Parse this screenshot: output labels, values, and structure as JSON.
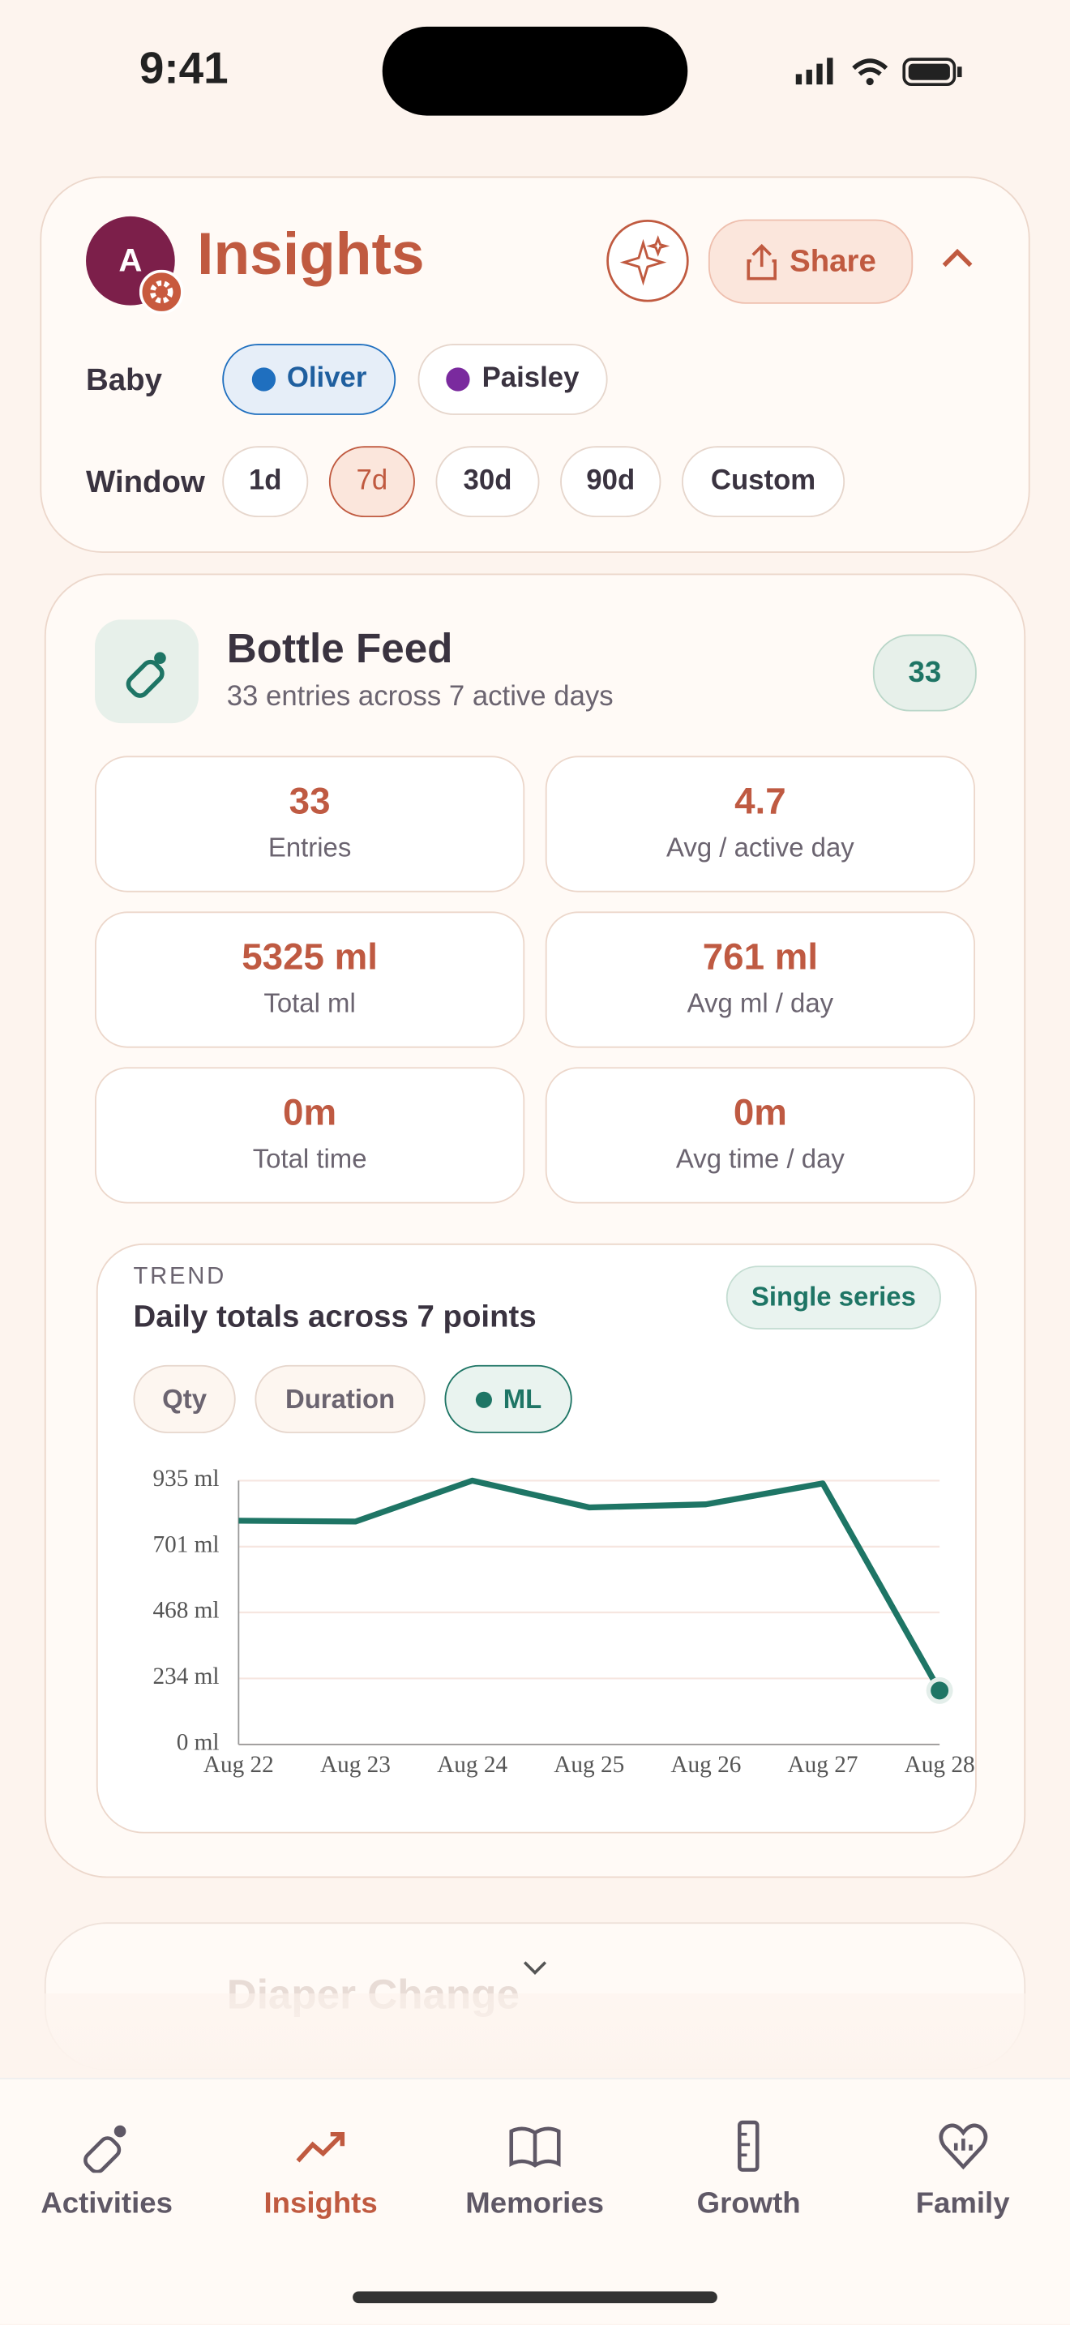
{
  "status_bar": {
    "time": "9:41"
  },
  "header": {
    "avatar": "A",
    "title": "Insights",
    "share": "Share",
    "baby_label": "Baby",
    "babies": [
      {
        "name": "Oliver",
        "color": "#1f6fbf"
      },
      {
        "name": "Paisley",
        "color": "#7a2a9e"
      }
    ],
    "window_label": "Window",
    "windows": [
      "1d",
      "7d",
      "30d",
      "90d",
      "Custom"
    ]
  },
  "card": {
    "title": "Bottle Feed",
    "subtitle": "33 entries across 7 active days",
    "badge": "33",
    "stats": [
      {
        "value": "33",
        "label": "Entries"
      },
      {
        "value": "4.7",
        "label": "Avg / active day"
      },
      {
        "value": "5325 ml",
        "label": "Total ml"
      },
      {
        "value": "761 ml",
        "label": "Avg ml / day"
      },
      {
        "value": "0m",
        "label": "Total time"
      },
      {
        "value": "0m",
        "label": "Avg time / day"
      }
    ]
  },
  "chart_data": {
    "type": "line",
    "eyebrow": "TREND",
    "title": "Daily totals across 7 points",
    "badge": "Single series",
    "toggles": [
      "Qty",
      "Duration"
    ],
    "categories": [
      "Aug 22",
      "Aug 23",
      "Aug 24",
      "Aug 25",
      "Aug 26",
      "Aug 27",
      "Aug 28"
    ],
    "series": [
      {
        "name": "ML",
        "color": "#1e7565",
        "values": [
          793,
          790,
          935,
          840,
          851,
          925,
          191
        ]
      }
    ],
    "ylim": [
      0,
      935
    ],
    "yticks": [
      {
        "value": 0,
        "label": "0 ml"
      },
      {
        "value": 234,
        "label": "234 ml"
      },
      {
        "value": 468,
        "label": "468 ml"
      },
      {
        "value": 701,
        "label": "701 ml"
      },
      {
        "value": 935,
        "label": "935 ml"
      }
    ],
    "grid": true
  },
  "next_card": {
    "title": "Diaper Change"
  },
  "tabs": [
    "Activities",
    "Insights",
    "Memories",
    "Growth",
    "Family"
  ]
}
